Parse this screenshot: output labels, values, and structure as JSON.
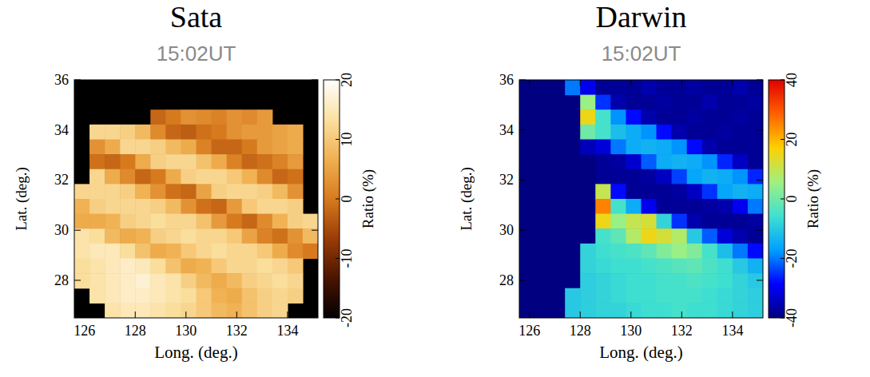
{
  "chart_data": [
    {
      "type": "heatmap",
      "title": "Sata",
      "subtitle": "15:02UT",
      "x_label": "Long. (deg.)",
      "y_label": "Lat. (deg.)",
      "xlim": [
        125.6,
        135.2
      ],
      "ylim": [
        26.5,
        36
      ],
      "xticks": [
        126,
        128,
        130,
        132,
        134
      ],
      "yticks": [
        28,
        30,
        32,
        34,
        36
      ],
      "colorbar_label": "Ratio (%)",
      "colorbar_range": [
        -20,
        20
      ],
      "colorbar_ticks": [
        -20,
        -10,
        0,
        10,
        20
      ],
      "colors": [
        "#000000",
        "#4a1400",
        "#9a3c06",
        "#d77a1e",
        "#f0b050",
        "#fbe0a0",
        "#ffffff"
      ],
      "cells": [
        [
          null,
          null,
          null,
          null,
          null,
          null,
          null,
          null,
          null,
          null,
          null,
          null,
          null,
          null,
          null,
          null
        ],
        [
          null,
          null,
          null,
          null,
          null,
          null,
          null,
          null,
          null,
          null,
          null,
          null,
          null,
          null,
          null,
          null
        ],
        [
          null,
          null,
          null,
          null,
          null,
          -2,
          0,
          3,
          2,
          1,
          3,
          2,
          4,
          null,
          null,
          null
        ],
        [
          null,
          12,
          12,
          11,
          8,
          2,
          -2,
          -3,
          -1,
          0,
          3,
          4,
          4,
          5,
          6,
          null
        ],
        [
          null,
          3,
          6,
          12,
          12,
          11,
          8,
          6,
          1,
          -2,
          -2,
          0,
          4,
          5,
          6,
          null
        ],
        [
          null,
          -1,
          -2,
          0,
          6,
          11,
          12,
          12,
          9,
          6,
          1,
          -2,
          -1,
          1,
          4,
          null
        ],
        [
          null,
          12,
          6,
          2,
          -2,
          0,
          6,
          11,
          12,
          12,
          10,
          7,
          2,
          -2,
          -1,
          null
        ],
        [
          12,
          12,
          12,
          11,
          7,
          3,
          -1,
          -2,
          5,
          11,
          12,
          12,
          11,
          8,
          3,
          null
        ],
        [
          7,
          11,
          12,
          12,
          12,
          11,
          8,
          3,
          -1,
          -2,
          4,
          10,
          12,
          12,
          11,
          null
        ],
        [
          6,
          6,
          7,
          11,
          12,
          13,
          12,
          12,
          9,
          4,
          0,
          -2,
          2,
          7,
          11,
          12
        ],
        [
          14,
          13,
          8,
          6,
          7,
          11,
          12,
          13,
          12,
          12,
          10,
          5,
          1,
          -1,
          3,
          8
        ],
        [
          14,
          15,
          15,
          13,
          9,
          6,
          7,
          10,
          12,
          13,
          12,
          12,
          10,
          6,
          2,
          0
        ],
        [
          13,
          14,
          15,
          16,
          15,
          13,
          9,
          6,
          7,
          10,
          12,
          12,
          13,
          12,
          10,
          null
        ],
        [
          13,
          14,
          15,
          16,
          17,
          15,
          14,
          11,
          8,
          6,
          8,
          11,
          12,
          13,
          12,
          null
        ],
        [
          null,
          14,
          15,
          16,
          16,
          15,
          14,
          13,
          10,
          7,
          6,
          9,
          11,
          12,
          11,
          null
        ],
        [
          null,
          null,
          14,
          15,
          15,
          14,
          13,
          12,
          10,
          8,
          7,
          9,
          11,
          12,
          null,
          null
        ]
      ]
    },
    {
      "type": "heatmap",
      "title": "Darwin",
      "subtitle": "15:02UT",
      "x_label": "Long. (deg.)",
      "y_label": "Lat. (deg.)",
      "xlim": [
        125.6,
        135.2
      ],
      "ylim": [
        26.5,
        36
      ],
      "xticks": [
        126,
        128,
        130,
        132,
        134
      ],
      "yticks": [
        28,
        30,
        32,
        34,
        36
      ],
      "colorbar_label": "Ratio (%)",
      "colorbar_range": [
        -40,
        40
      ],
      "colorbar_ticks": [
        -40,
        -20,
        0,
        20,
        40
      ],
      "colors": [
        "#000080",
        "#0000ff",
        "#00a0ff",
        "#40e0d0",
        "#a0f080",
        "#ffd000",
        "#ff6000",
        "#e00000"
      ],
      "cells": [
        [
          null,
          null,
          null,
          -20,
          -30,
          -38,
          -38,
          -38,
          -36,
          -38,
          -38,
          -37,
          -38,
          -38,
          -36,
          -38
        ],
        [
          null,
          null,
          null,
          null,
          5,
          -25,
          -36,
          -38,
          -38,
          -37,
          -38,
          -38,
          -36,
          -38,
          -38,
          -37
        ],
        [
          null,
          null,
          null,
          null,
          15,
          -5,
          -18,
          -28,
          -36,
          -38,
          -38,
          -37,
          -38,
          -38,
          -37,
          -38
        ],
        [
          null,
          null,
          null,
          null,
          0,
          -5,
          -12,
          -15,
          -18,
          -28,
          -36,
          -38,
          -38,
          -37,
          -38,
          -38
        ],
        [
          null,
          null,
          null,
          null,
          -35,
          -32,
          -20,
          -15,
          -14,
          -15,
          -18,
          -28,
          -36,
          -38,
          -38,
          -38
        ],
        [
          null,
          null,
          null,
          null,
          null,
          -38,
          -37,
          -33,
          -22,
          -15,
          -14,
          -15,
          -18,
          -26,
          -34,
          -38
        ],
        [
          null,
          null,
          null,
          null,
          null,
          -38,
          -38,
          -38,
          -37,
          -34,
          -24,
          -16,
          -14,
          -15,
          -18,
          -26
        ],
        [
          null,
          null,
          null,
          null,
          null,
          10,
          -28,
          -38,
          -38,
          -38,
          -37,
          -34,
          -25,
          -16,
          -14,
          -15
        ],
        [
          null,
          null,
          null,
          null,
          null,
          25,
          -5,
          -15,
          -30,
          -38,
          -38,
          -38,
          -37,
          -36,
          -30,
          -20
        ],
        [
          null,
          null,
          null,
          null,
          null,
          15,
          5,
          10,
          12,
          -8,
          -25,
          -36,
          -38,
          -38,
          -38,
          -37
        ],
        [
          null,
          null,
          null,
          null,
          null,
          -5,
          -2,
          8,
          15,
          12,
          8,
          -10,
          -22,
          -32,
          -36,
          -38
        ],
        [
          null,
          null,
          null,
          null,
          -8,
          -6,
          -5,
          -4,
          -2,
          2,
          5,
          2,
          -5,
          -12,
          -20,
          -28
        ],
        [
          null,
          null,
          null,
          null,
          -8,
          -7,
          -6,
          -6,
          -5,
          -4,
          -3,
          -2,
          -4,
          -6,
          -10,
          -14
        ],
        [
          null,
          null,
          null,
          null,
          -9,
          -8,
          -7,
          -6,
          -6,
          -5,
          -5,
          -4,
          -5,
          -6,
          -8,
          -10
        ],
        [
          null,
          null,
          null,
          -10,
          -9,
          -8,
          -7,
          -6,
          -6,
          -5,
          -5,
          -5,
          -6,
          -7,
          -8,
          -9
        ],
        [
          null,
          null,
          null,
          -10,
          -9,
          -8,
          -8,
          -7,
          -6,
          -6,
          -5,
          -6,
          -6,
          -7,
          -8,
          -9
        ]
      ]
    }
  ]
}
